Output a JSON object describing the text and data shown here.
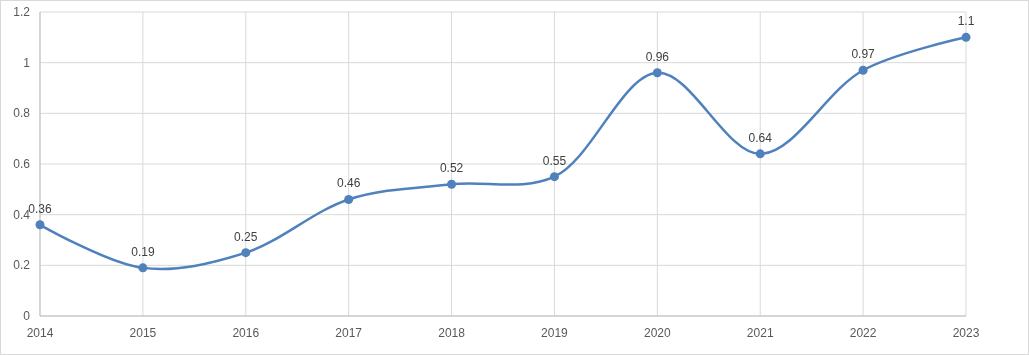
{
  "chart_data": {
    "type": "line",
    "x": [
      2014,
      2015,
      2016,
      2017,
      2018,
      2019,
      2020,
      2021,
      2022,
      2023
    ],
    "series": [
      {
        "color": "#4f81bd",
        "values": [
          0.36,
          0.19,
          0.25,
          0.46,
          0.52,
          0.55,
          0.96,
          0.64,
          0.97,
          1.1
        ]
      }
    ],
    "xlim": [
      2014,
      2023
    ],
    "xticks": [
      2014,
      2015,
      2016,
      2017,
      2018,
      2019,
      2020,
      2021,
      2022,
      2023
    ],
    "ylim": [
      0,
      1.2
    ],
    "yticks": [
      0,
      0.2,
      0.4,
      0.6,
      0.8,
      1,
      1.2
    ],
    "grid": true,
    "data_labels": true,
    "marker": "circle",
    "line_style": "solid"
  }
}
